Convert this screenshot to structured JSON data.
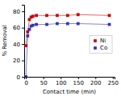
{
  "chart_data": {
    "type": "line",
    "xlabel": "Contact time (min)",
    "ylabel": "% Removal",
    "x": [
      0,
      5,
      10,
      15,
      20,
      30,
      60,
      90,
      120,
      150,
      240
    ],
    "series": [
      {
        "name": "Ni",
        "color": "#cc0000",
        "marker": "square",
        "values": [
          38,
          55,
          70,
          73,
          74,
          75,
          75,
          75,
          75,
          76,
          75
        ]
      },
      {
        "name": "Co",
        "color": "#3333bb",
        "marker": "square",
        "values": [
          0,
          50,
          58,
          62,
          63,
          64,
          64,
          65,
          65,
          65,
          64
        ]
      }
    ],
    "xlim": [
      -5,
      255
    ],
    "xticks": [
      0,
      50,
      100,
      150,
      200,
      250
    ],
    "ylim": [
      0,
      88
    ],
    "yticks": [
      0,
      20,
      40,
      60,
      80
    ],
    "grid": false,
    "legend": "right"
  }
}
